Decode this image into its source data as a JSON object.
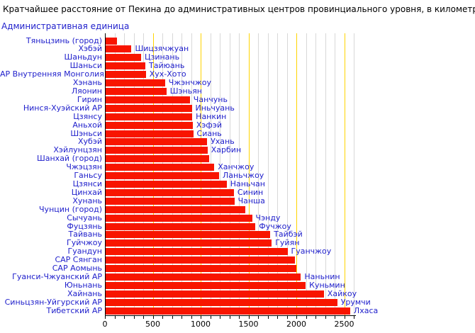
{
  "chart_data": {
    "type": "bar",
    "orientation": "horizontal",
    "title": "Кратчайшее расстояние от Пекина до административных центров провинциального уровня, в километрах",
    "ylabel": "Административная единица",
    "xlabel": "",
    "unit": "км",
    "xlim": [
      0,
      2610
    ],
    "x_ticks": [
      0,
      500,
      1000,
      1500,
      2000,
      2500
    ],
    "minor_grid_step_km": 100,
    "major_grid_step_km": 500,
    "grid": true,
    "legend": false,
    "bar_color": "#F81500",
    "label_color": "#2121CC",
    "minor_grid_color": "#D8D8D8",
    "major_grid_color": "#FFD400",
    "rows": [
      {
        "region": "Тяньцзинь (город)",
        "city": "",
        "distance_km": 115
      },
      {
        "region": "Хэбэй",
        "city": "Шицзячжуан",
        "distance_km": 270
      },
      {
        "region": "Шаньдун",
        "city": "Цзинань",
        "distance_km": 370
      },
      {
        "region": "Шаньси",
        "city": "Тайюань",
        "distance_km": 415
      },
      {
        "region": "АР Внутренняя Монголия",
        "city": "Хух-Хото",
        "distance_km": 420
      },
      {
        "region": "Хэнань",
        "city": "Чжэнчжоу",
        "distance_km": 620
      },
      {
        "region": "Ляонин",
        "city": "Шэньян",
        "distance_km": 635
      },
      {
        "region": "Гирин",
        "city": "Чанчунь",
        "distance_km": 880
      },
      {
        "region": "Нинся-Хуэйский АР",
        "city": "Иньчуань",
        "distance_km": 900
      },
      {
        "region": "Цзянсу",
        "city": "Нанкин",
        "distance_km": 905
      },
      {
        "region": "Аньхой",
        "city": "Хэфэй",
        "distance_km": 910
      },
      {
        "region": "Шэньси",
        "city": "Сиань",
        "distance_km": 915
      },
      {
        "region": "Хубэй",
        "city": "Ухань",
        "distance_km": 1060
      },
      {
        "region": "Хэйлунцзян",
        "city": "Харбин",
        "distance_km": 1065
      },
      {
        "region": "Шанхай (город)",
        "city": "",
        "distance_km": 1085
      },
      {
        "region": "Чжэцзян",
        "city": "Ханчжоу",
        "distance_km": 1135
      },
      {
        "region": "Ганьсу",
        "city": "Ланьчжоу",
        "distance_km": 1185
      },
      {
        "region": "Цзянси",
        "city": "Наньчан",
        "distance_km": 1265
      },
      {
        "region": "Цинхай",
        "city": "Синин",
        "distance_km": 1340
      },
      {
        "region": "Хунань",
        "city": "Чанша",
        "distance_km": 1345
      },
      {
        "region": "Чунцин (город)",
        "city": "",
        "distance_km": 1460
      },
      {
        "region": "Сычуань",
        "city": "Чэнду",
        "distance_km": 1530
      },
      {
        "region": "Фуцзянь",
        "city": "Фучжоу",
        "distance_km": 1565
      },
      {
        "region": "Тайвань",
        "city": "Тайбэй",
        "distance_km": 1720
      },
      {
        "region": "Гуйчжоу",
        "city": "Гуйян",
        "distance_km": 1735
      },
      {
        "region": "Гуандун",
        "city": "Гуанчжоу",
        "distance_km": 1900
      },
      {
        "region": "САР Сянган",
        "city": "",
        "distance_km": 1980
      },
      {
        "region": "САР Аомынь",
        "city": "",
        "distance_km": 1990
      },
      {
        "region": "Гуанси-Чжуанский АР",
        "city": "Наньнин",
        "distance_km": 2040
      },
      {
        "region": "Юньнань",
        "city": "Куньмин",
        "distance_km": 2090
      },
      {
        "region": "Хайнань",
        "city": "Хайкоу",
        "distance_km": 2280
      },
      {
        "region": "Синьцзян-Уйгурский АР",
        "city": "Урумчи",
        "distance_km": 2420
      },
      {
        "region": "Тибетский АР",
        "city": "Лхаса",
        "distance_km": 2555
      }
    ]
  }
}
